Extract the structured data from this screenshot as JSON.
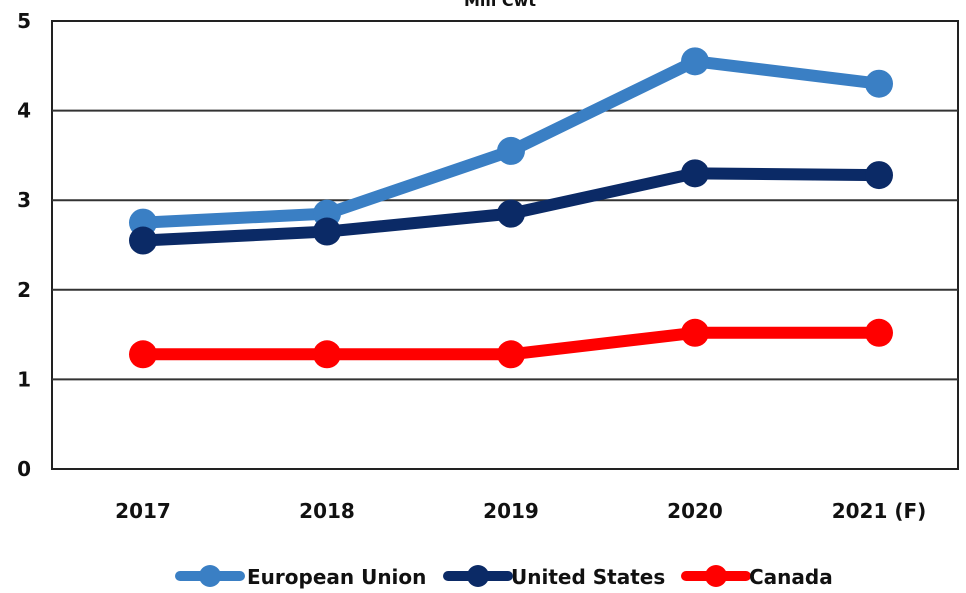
{
  "chart_data": {
    "type": "line",
    "title": "Mill Cwt",
    "xlabel": "",
    "ylabel": "",
    "categories": [
      "2017",
      "2018",
      "2019",
      "2020",
      "2021 (F)"
    ],
    "ylim": [
      0,
      5
    ],
    "yticks": [
      "0",
      "1",
      "2",
      "3",
      "4",
      "5"
    ],
    "grid": true,
    "legend_position": "bottom",
    "series": [
      {
        "name": "European Union",
        "color": "#3a7fc4",
        "values": [
          2.75,
          2.85,
          3.55,
          4.55,
          4.3
        ]
      },
      {
        "name": "United States",
        "color": "#0b2a66",
        "values": [
          2.55,
          2.65,
          2.85,
          3.3,
          3.28
        ]
      },
      {
        "name": "Canada",
        "color": "#ff0000",
        "values": [
          1.28,
          1.28,
          1.28,
          1.52,
          1.52
        ]
      }
    ]
  }
}
